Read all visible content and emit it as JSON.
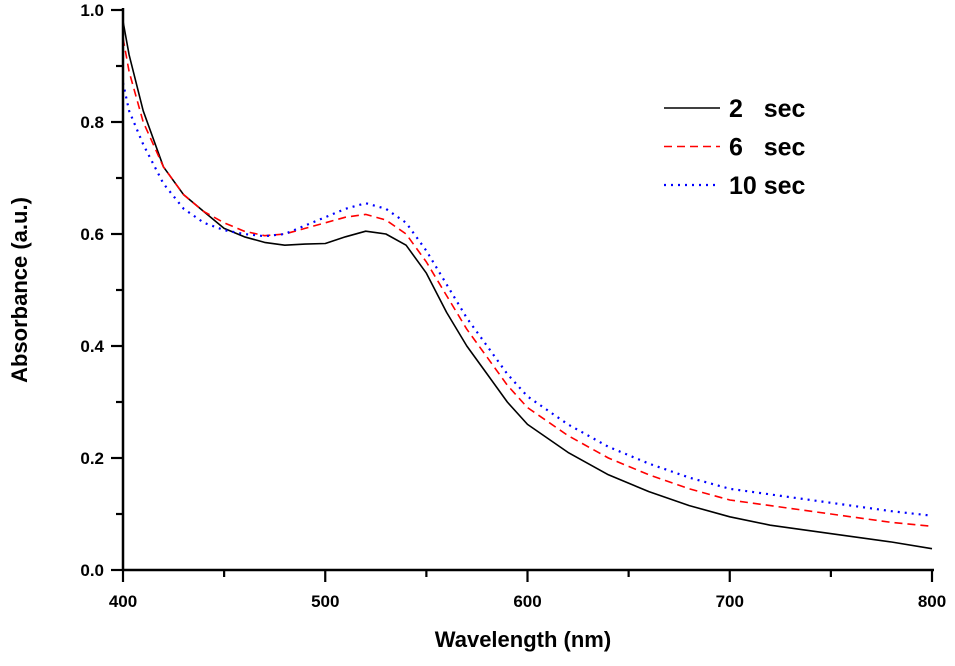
{
  "chart_data": {
    "type": "line",
    "title": "",
    "xlabel": "Wavelength (nm)",
    "ylabel": "Absorbance (a.u.)",
    "xlim": [
      400,
      800
    ],
    "ylim": [
      0.0,
      1.0
    ],
    "xticks": [
      "400",
      "500",
      "600",
      "700",
      "800"
    ],
    "yticks": [
      "0.0",
      "0.2",
      "0.4",
      "0.6",
      "0.8",
      "1.0"
    ],
    "grid": false,
    "legend_position": "top-right",
    "x": [
      400,
      403,
      410,
      420,
      430,
      440,
      450,
      460,
      470,
      480,
      490,
      500,
      510,
      520,
      530,
      540,
      550,
      560,
      570,
      580,
      590,
      600,
      620,
      640,
      660,
      680,
      700,
      720,
      740,
      760,
      780,
      800
    ],
    "series": [
      {
        "name": "2   sec",
        "color": "#000000",
        "dash": "solid",
        "values": [
          0.98,
          0.92,
          0.82,
          0.72,
          0.67,
          0.64,
          0.61,
          0.595,
          0.585,
          0.58,
          0.582,
          0.583,
          0.595,
          0.605,
          0.6,
          0.58,
          0.53,
          0.46,
          0.4,
          0.35,
          0.3,
          0.26,
          0.21,
          0.17,
          0.14,
          0.115,
          0.095,
          0.08,
          0.07,
          0.06,
          0.05,
          0.038
        ]
      },
      {
        "name": "6   sec",
        "color": "#ff0000",
        "dash": "dashed",
        "values": [
          0.95,
          0.89,
          0.8,
          0.72,
          0.67,
          0.64,
          0.62,
          0.605,
          0.597,
          0.6,
          0.61,
          0.62,
          0.63,
          0.635,
          0.625,
          0.6,
          0.55,
          0.49,
          0.43,
          0.38,
          0.33,
          0.29,
          0.24,
          0.2,
          0.17,
          0.145,
          0.125,
          0.115,
          0.105,
          0.095,
          0.085,
          0.078
        ]
      },
      {
        "name": "10 sec",
        "color": "#0000ff",
        "dash": "dotted",
        "values": [
          0.87,
          0.82,
          0.76,
          0.69,
          0.645,
          0.62,
          0.607,
          0.6,
          0.596,
          0.6,
          0.615,
          0.63,
          0.645,
          0.655,
          0.645,
          0.62,
          0.57,
          0.51,
          0.45,
          0.4,
          0.35,
          0.31,
          0.26,
          0.22,
          0.19,
          0.165,
          0.145,
          0.135,
          0.125,
          0.115,
          0.105,
          0.097
        ]
      }
    ]
  }
}
